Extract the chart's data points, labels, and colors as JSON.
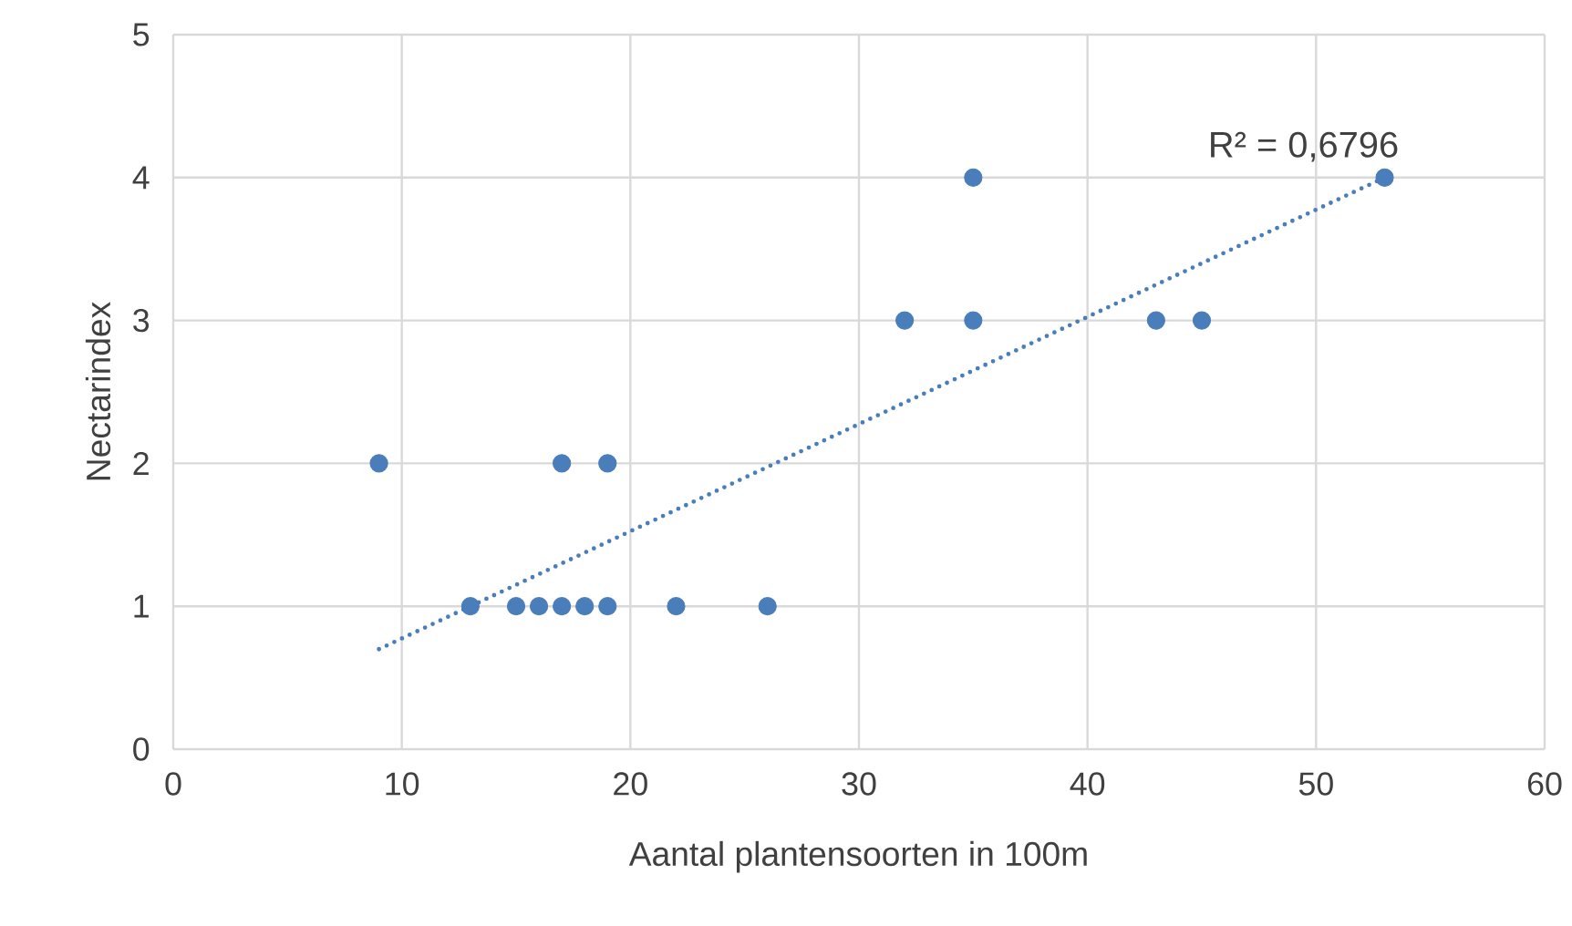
{
  "chart_data": {
    "type": "scatter",
    "xlabel": "Aantal plantensoorten in 100m",
    "ylabel": "Nectarindex",
    "xlim": [
      0,
      60
    ],
    "ylim": [
      0,
      5
    ],
    "xticks": [
      0,
      10,
      20,
      30,
      40,
      50,
      60
    ],
    "yticks": [
      0,
      1,
      2,
      3,
      4,
      5
    ],
    "grid": true,
    "series": [
      {
        "color": "#4a7ebb",
        "marker": "circle",
        "x": [
          9,
          13,
          15,
          16,
          17,
          18,
          19,
          22,
          26,
          17,
          19,
          32,
          35,
          35,
          43,
          45,
          53
        ],
        "values": [
          2,
          1,
          1,
          1,
          1,
          1,
          1,
          1,
          1,
          2,
          2,
          3,
          3,
          4,
          3,
          3,
          4
        ]
      },
      {
        "type": "line",
        "color": "#4a7ebb",
        "line_style": "dotted",
        "marker": "none",
        "x": [
          9,
          53
        ],
        "values": [
          0.7,
          4.0
        ]
      }
    ],
    "annotations": [
      "R² = 0,6796"
    ]
  }
}
